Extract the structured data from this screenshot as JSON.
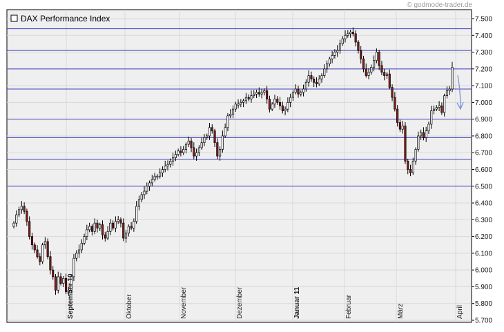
{
  "watermark": "© godmode-trader.de",
  "colors": {
    "plot_background": "#efefef",
    "grid": "#d8d8d8",
    "resistance_line": "#3f3fbf",
    "candle_down": "#8b1a1a",
    "candle_up": "#ffffff",
    "arrow": "#7d8fd8"
  },
  "chart_data": {
    "type": "candlestick",
    "title": "DAX Performance Index",
    "y_ticks": [
      "7.500",
      "7.400",
      "7.300",
      "7.200",
      "7.100",
      "7.000",
      "6.900",
      "6.800",
      "6.700",
      "6.600",
      "6.500",
      "6.400",
      "6.300",
      "6.200",
      "6.100",
      "6.000",
      "5.900",
      "5.800",
      "5.700"
    ],
    "ylim": [
      5700,
      7550
    ],
    "x_ticks": [
      {
        "label": "September 10",
        "bold": true
      },
      {
        "label": "Oktober",
        "bold": false
      },
      {
        "label": "November",
        "bold": false
      },
      {
        "label": "Dezember",
        "bold": false
      },
      {
        "label": "Januar 11",
        "bold": true
      },
      {
        "label": "Februar",
        "bold": false
      },
      {
        "label": "März",
        "bold": false
      },
      {
        "label": "April",
        "bold": false
      }
    ],
    "horizontal_levels": [
      7440,
      7310,
      7200,
      7080,
      6900,
      6790,
      6660,
      6500
    ],
    "closes": [
      6280,
      6330,
      6360,
      6380,
      6350,
      6290,
      6200,
      6150,
      6120,
      6080,
      6050,
      6150,
      6170,
      6080,
      6000,
      5960,
      5880,
      5960,
      5920,
      5950,
      5870,
      5880,
      5960,
      6070,
      6100,
      6120,
      6160,
      6200,
      6240,
      6260,
      6230,
      6280,
      6250,
      6270,
      6210,
      6190,
      6230,
      6280,
      6250,
      6290,
      6300,
      6280,
      6190,
      6220,
      6260,
      6250,
      6290,
      6380,
      6420,
      6450,
      6470,
      6500,
      6520,
      6540,
      6560,
      6560,
      6580,
      6600,
      6620,
      6630,
      6650,
      6670,
      6690,
      6710,
      6700,
      6720,
      6750,
      6770,
      6730,
      6680,
      6700,
      6730,
      6760,
      6790,
      6800,
      6850,
      6830,
      6760,
      6680,
      6720,
      6800,
      6850,
      6920,
      6930,
      6960,
      6990,
      6990,
      7000,
      7010,
      7030,
      7020,
      7040,
      7050,
      7060,
      7050,
      7060,
      7070,
      7020,
      6960,
      6990,
      7020,
      7000,
      6980,
      6950,
      6960,
      7000,
      7030,
      7060,
      7080,
      7050,
      7060,
      7080,
      7120,
      7160,
      7140,
      7120,
      7110,
      7140,
      7160,
      7200,
      7230,
      7260,
      7280,
      7300,
      7310,
      7350,
      7380,
      7400,
      7410,
      7420,
      7410,
      7360,
      7310,
      7260,
      7200,
      7160,
      7180,
      7210,
      7250,
      7300,
      7220,
      7180,
      7160,
      7170,
      7090,
      7030,
      6960,
      6880,
      6840,
      6860,
      6650,
      6600,
      6580,
      6650,
      6720,
      6800,
      6820,
      6790,
      6830,
      6870,
      6950,
      6960,
      6970,
      6980,
      6940,
      7040,
      7070,
      7080,
      7210
    ]
  }
}
